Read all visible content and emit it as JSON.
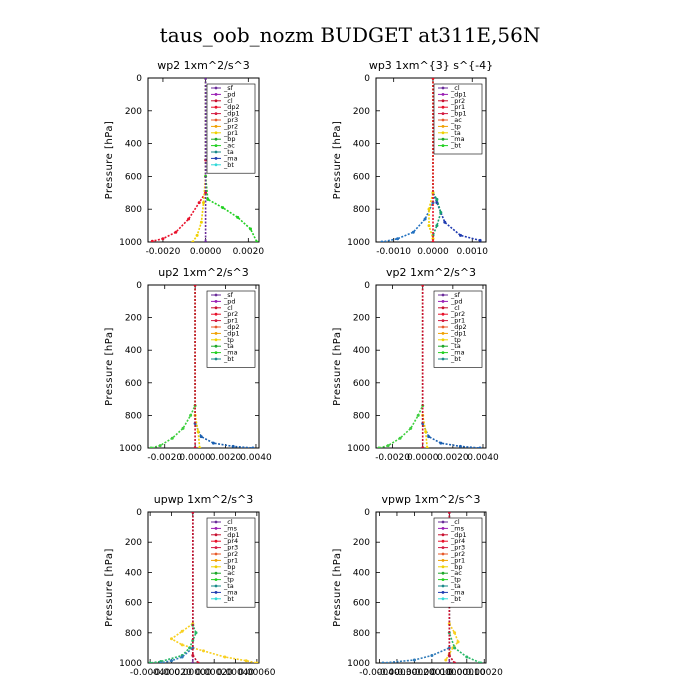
{
  "title": "taus_oob_nozm  BUDGET at311E,56N",
  "chart_data": [
    {
      "type": "line",
      "title": "wp2   1xm^2/s^3",
      "ylabel": "Pressure [hPa]",
      "xlim": [
        -0.0027,
        0.0025
      ],
      "ylim": [
        1000,
        0
      ],
      "xticks": [
        -0.002,
        0.0,
        0.002
      ],
      "xtick_labels": [
        "-0.0020",
        "0.0000",
        "0.0020"
      ],
      "yticks": [
        0,
        200,
        400,
        600,
        800,
        1000
      ],
      "legend": [
        "_sf",
        "_pd",
        "_cl",
        "_dp2",
        "_dp1",
        "_pr3",
        "_pr2",
        "_pr1",
        "_bp",
        "_ac",
        "_ta",
        "_ma",
        "_bt"
      ],
      "series": [
        {
          "name": "_cl",
          "color": "#e8102a",
          "points": [
            [
              0.0,
              0
            ],
            [
              0.0,
              500
            ],
            [
              0.0,
              700
            ],
            [
              -0.0003,
              760
            ],
            [
              -0.0008,
              860
            ],
            [
              -0.0014,
              940
            ],
            [
              -0.002,
              980
            ],
            [
              -0.0025,
              995
            ]
          ]
        },
        {
          "name": "_pr1",
          "color": "#f0d000",
          "points": [
            [
              0.0,
              0
            ],
            [
              0.0,
              600
            ],
            [
              -0.0001,
              760
            ],
            [
              -0.0002,
              880
            ],
            [
              -0.0004,
              960
            ],
            [
              -0.0006,
              1000
            ]
          ]
        },
        {
          "name": "_bp",
          "color": "#22d022",
          "points": [
            [
              0.0,
              0
            ],
            [
              0.0,
              600
            ],
            [
              0.0001,
              740
            ],
            [
              0.0008,
              790
            ],
            [
              0.0015,
              850
            ],
            [
              0.0021,
              920
            ],
            [
              0.0024,
              1000
            ]
          ]
        },
        {
          "name": "_sf",
          "color": "#6a2c9a",
          "points": [
            [
              0.0,
              0
            ],
            [
              0.0,
              1000
            ]
          ]
        }
      ]
    },
    {
      "type": "line",
      "title": "wp3   1xm^{3} s^{-4}",
      "ylabel": "Pressure [hPa]",
      "xlim": [
        -0.00145,
        0.00135
      ],
      "ylim": [
        1000,
        0
      ],
      "xticks": [
        -0.001,
        0.0,
        0.001
      ],
      "xtick_labels": [
        "-0.0010",
        "0.0000",
        "0.0010"
      ],
      "yticks": [
        0,
        200,
        400,
        600,
        800,
        1000
      ],
      "legend": [
        "_cl",
        "_dp1",
        "_pr2",
        "_pr1",
        "_bp1",
        "_ac",
        "_tp",
        "_ta",
        "_ma",
        "_bt"
      ],
      "series": [
        {
          "name": "_ta",
          "color": "#1e3ab0",
          "points": [
            [
              0.0,
              0
            ],
            [
              0.0,
              700
            ],
            [
              0.0001,
              760
            ],
            [
              0.0003,
              880
            ],
            [
              0.0007,
              960
            ],
            [
              0.0012,
              990
            ]
          ]
        },
        {
          "name": "_tp",
          "color": "#2070c0",
          "points": [
            [
              0.0,
              0
            ],
            [
              0.0,
              760
            ],
            [
              -0.0002,
              860
            ],
            [
              -0.0005,
              940
            ],
            [
              -0.0009,
              980
            ],
            [
              -0.0013,
              1000
            ]
          ]
        },
        {
          "name": "_ac",
          "color": "#18a070",
          "points": [
            [
              0.0,
              0
            ],
            [
              0.0,
              700
            ],
            [
              0.0001,
              740
            ],
            [
              0.0002,
              820
            ],
            [
              0.0001,
              900
            ],
            [
              0.0,
              960
            ]
          ]
        },
        {
          "name": "_pr1",
          "color": "#f0d000",
          "points": [
            [
              0.0,
              0
            ],
            [
              0.0,
              700
            ],
            [
              -0.0001,
              800
            ],
            [
              -0.0001,
              900
            ],
            [
              0.0,
              980
            ]
          ]
        },
        {
          "name": "_cl",
          "color": "#e8102a",
          "points": [
            [
              0.0,
              0
            ],
            [
              0.0,
              1000
            ]
          ]
        }
      ]
    },
    {
      "type": "line",
      "title": "up2   1xm^2/s^3",
      "ylabel": "Pressure [hPa]",
      "xlim": [
        -0.0031,
        0.0042
      ],
      "ylim": [
        1000,
        0
      ],
      "xticks": [
        -0.002,
        0.0,
        0.002,
        0.004
      ],
      "xtick_labels": [
        "-0.0020",
        "0.0000",
        "0.0020",
        "0.0040"
      ],
      "yticks": [
        0,
        200,
        400,
        600,
        800,
        1000
      ],
      "legend": [
        "_sf",
        "_pd",
        "_cl",
        "_pr2",
        "_pr1",
        "_dp2",
        "_dp1",
        "_tp",
        "_ta",
        "_ma",
        "_bt"
      ],
      "series": [
        {
          "name": "_dp1",
          "color": "#3ecf3e",
          "points": [
            [
              0.0,
              0
            ],
            [
              0.0,
              740
            ],
            [
              -0.0003,
              800
            ],
            [
              -0.0008,
              880
            ],
            [
              -0.0015,
              940
            ],
            [
              -0.0023,
              985
            ],
            [
              -0.0029,
              1000
            ]
          ]
        },
        {
          "name": "_tp",
          "color": "#1a5fb0",
          "points": [
            [
              0.0,
              0
            ],
            [
              0.0,
              850
            ],
            [
              0.0004,
              930
            ],
            [
              0.0012,
              970
            ],
            [
              0.0025,
              990
            ],
            [
              0.0038,
              1000
            ]
          ]
        },
        {
          "name": "_pr1",
          "color": "#f0d000",
          "points": [
            [
              0.0,
              0
            ],
            [
              0.0,
              800
            ],
            [
              0.0002,
              900
            ],
            [
              0.0003,
              1000
            ]
          ]
        },
        {
          "name": "_cl",
          "color": "#c81030",
          "points": [
            [
              0.0,
              0
            ],
            [
              0.0,
              1000
            ]
          ]
        }
      ]
    },
    {
      "type": "line",
      "title": "vp2   1xm^2/s^3",
      "ylabel": "Pressure [hPa]",
      "xlim": [
        -0.0031,
        0.0042
      ],
      "ylim": [
        1000,
        0
      ],
      "xticks": [
        -0.002,
        0.0,
        0.002,
        0.004
      ],
      "xtick_labels": [
        "-0.0020",
        "0.0000",
        "0.0020",
        "0.0040"
      ],
      "yticks": [
        0,
        200,
        400,
        600,
        800,
        1000
      ],
      "legend": [
        "_sf",
        "_pd",
        "_cl",
        "_pr2",
        "_pr1",
        "_dp2",
        "_dp1",
        "_tp",
        "_ta",
        "_ma",
        "_bt"
      ],
      "series": [
        {
          "name": "_dp1",
          "color": "#3ecf3e",
          "points": [
            [
              0.0,
              0
            ],
            [
              0.0,
              740
            ],
            [
              -0.0003,
              800
            ],
            [
              -0.0008,
              880
            ],
            [
              -0.0015,
              940
            ],
            [
              -0.0023,
              985
            ],
            [
              -0.0029,
              1000
            ]
          ]
        },
        {
          "name": "_tp",
          "color": "#1a5fb0",
          "points": [
            [
              0.0,
              0
            ],
            [
              0.0,
              850
            ],
            [
              0.0004,
              930
            ],
            [
              0.0012,
              970
            ],
            [
              0.0025,
              990
            ],
            [
              0.0038,
              1000
            ]
          ]
        },
        {
          "name": "_pr1",
          "color": "#f0d000",
          "points": [
            [
              0.0,
              0
            ],
            [
              0.0,
              800
            ],
            [
              0.0002,
              900
            ],
            [
              0.0003,
              1000
            ]
          ]
        },
        {
          "name": "_cl",
          "color": "#c81030",
          "points": [
            [
              0.0,
              0
            ],
            [
              0.0,
              1000
            ]
          ]
        }
      ]
    },
    {
      "type": "line",
      "title": "upwp   1xm^2/s^3",
      "ylabel": "Pressure [hPa]",
      "xlim": [
        -0.00042,
        0.00062
      ],
      "ylim": [
        1000,
        0
      ],
      "xticks": [
        -0.0004,
        -0.0002,
        0.0,
        0.0002,
        0.0004,
        0.0006
      ],
      "xtick_labels": [
        "-0.00040",
        "-0.00020",
        "0.00000",
        "0.00020",
        "0.00040",
        "0.00060"
      ],
      "yticks": [
        0,
        200,
        400,
        600,
        800,
        1000
      ],
      "legend": [
        "_cl",
        "_ms",
        "_dp1",
        "_pr4",
        "_pr3",
        "_pr2",
        "_pr1",
        "_bp",
        "_ac",
        "_tp",
        "_ta",
        "_ma",
        "_bt"
      ],
      "series": [
        {
          "name": "_pr1",
          "color": "#f8d020",
          "points": [
            [
              0.0,
              0
            ],
            [
              0.0,
              740
            ],
            [
              -0.0001,
              790
            ],
            [
              -0.0002,
              840
            ],
            [
              -0.0001,
              880
            ],
            [
              0.0001,
              920
            ],
            [
              0.0003,
              960
            ],
            [
              0.0005,
              985
            ],
            [
              0.0006,
              1000
            ]
          ]
        },
        {
          "name": "_ac",
          "color": "#28b868",
          "points": [
            [
              0.0,
              0
            ],
            [
              0.0,
              750
            ],
            [
              3e-05,
              800
            ],
            [
              0.0,
              850
            ],
            [
              -3e-05,
              900
            ],
            [
              -0.0001,
              950
            ],
            [
              -0.0003,
              990
            ],
            [
              -0.0004,
              1000
            ]
          ]
        },
        {
          "name": "_tp",
          "color": "#2e7ab8",
          "points": [
            [
              0.0,
              0
            ],
            [
              0.0,
              900
            ],
            [
              -0.0001,
              960
            ],
            [
              -0.0002,
              985
            ],
            [
              -0.0003,
              1000
            ]
          ]
        },
        {
          "name": "_cl",
          "color": "#7a2a96",
          "points": [
            [
              0.0,
              0
            ],
            [
              0.0,
              1000
            ]
          ]
        },
        {
          "name": "_dp1",
          "color": "#c81030",
          "points": [
            [
              0.0,
              0
            ],
            [
              0.0,
              950
            ],
            [
              5e-05,
              1000
            ]
          ]
        }
      ]
    },
    {
      "type": "line",
      "title": "vpwp   1xm^2/s^3",
      "ylabel": "Pressure [hPa]",
      "xlim": [
        -0.00042,
        0.00021
      ],
      "ylim": [
        1000,
        0
      ],
      "xticks": [
        -0.0004,
        -0.0003,
        -0.0002,
        -0.0001,
        0.0,
        0.0001,
        0.0002
      ],
      "xtick_labels": [
        "-0.00040",
        "-0.00030",
        "-0.00020",
        "-0.00010",
        "0.00000",
        "0.00010",
        "0.00020"
      ],
      "yticks": [
        0,
        200,
        400,
        600,
        800,
        1000
      ],
      "legend": [
        "_cl",
        "_ms",
        "_dp1",
        "_pr4",
        "_pr3",
        "_pr2",
        "_pr1",
        "_bp",
        "_ac",
        "_tp",
        "_ta",
        "_ma",
        "_bt"
      ],
      "series": [
        {
          "name": "_pr1",
          "color": "#f8d020",
          "points": [
            [
              0.0,
              0
            ],
            [
              0.0,
              740
            ],
            [
              3e-05,
              800
            ],
            [
              5e-05,
              860
            ],
            [
              2e-05,
              900
            ],
            [
              0.0,
              940
            ],
            [
              -2e-05,
              980
            ]
          ]
        },
        {
          "name": "_ac",
          "color": "#28b868",
          "points": [
            [
              0.0,
              0
            ],
            [
              0.0,
              800
            ],
            [
              3e-05,
              900
            ],
            [
              0.0001,
              960
            ],
            [
              0.00018,
              1000
            ]
          ]
        },
        {
          "name": "_tp",
          "color": "#2e7ab8",
          "points": [
            [
              0.0,
              0
            ],
            [
              0.0,
              900
            ],
            [
              -0.0001,
              950
            ],
            [
              -0.0002,
              980
            ],
            [
              -0.00038,
              1000
            ]
          ]
        },
        {
          "name": "_cl",
          "color": "#7a2a96",
          "points": [
            [
              0.0,
              0
            ],
            [
              0.0,
              1000
            ]
          ]
        },
        {
          "name": "_dp1",
          "color": "#c81030",
          "points": [
            [
              0.0,
              0
            ],
            [
              0.0,
              950
            ],
            [
              3e-05,
              1000
            ]
          ]
        }
      ]
    }
  ]
}
